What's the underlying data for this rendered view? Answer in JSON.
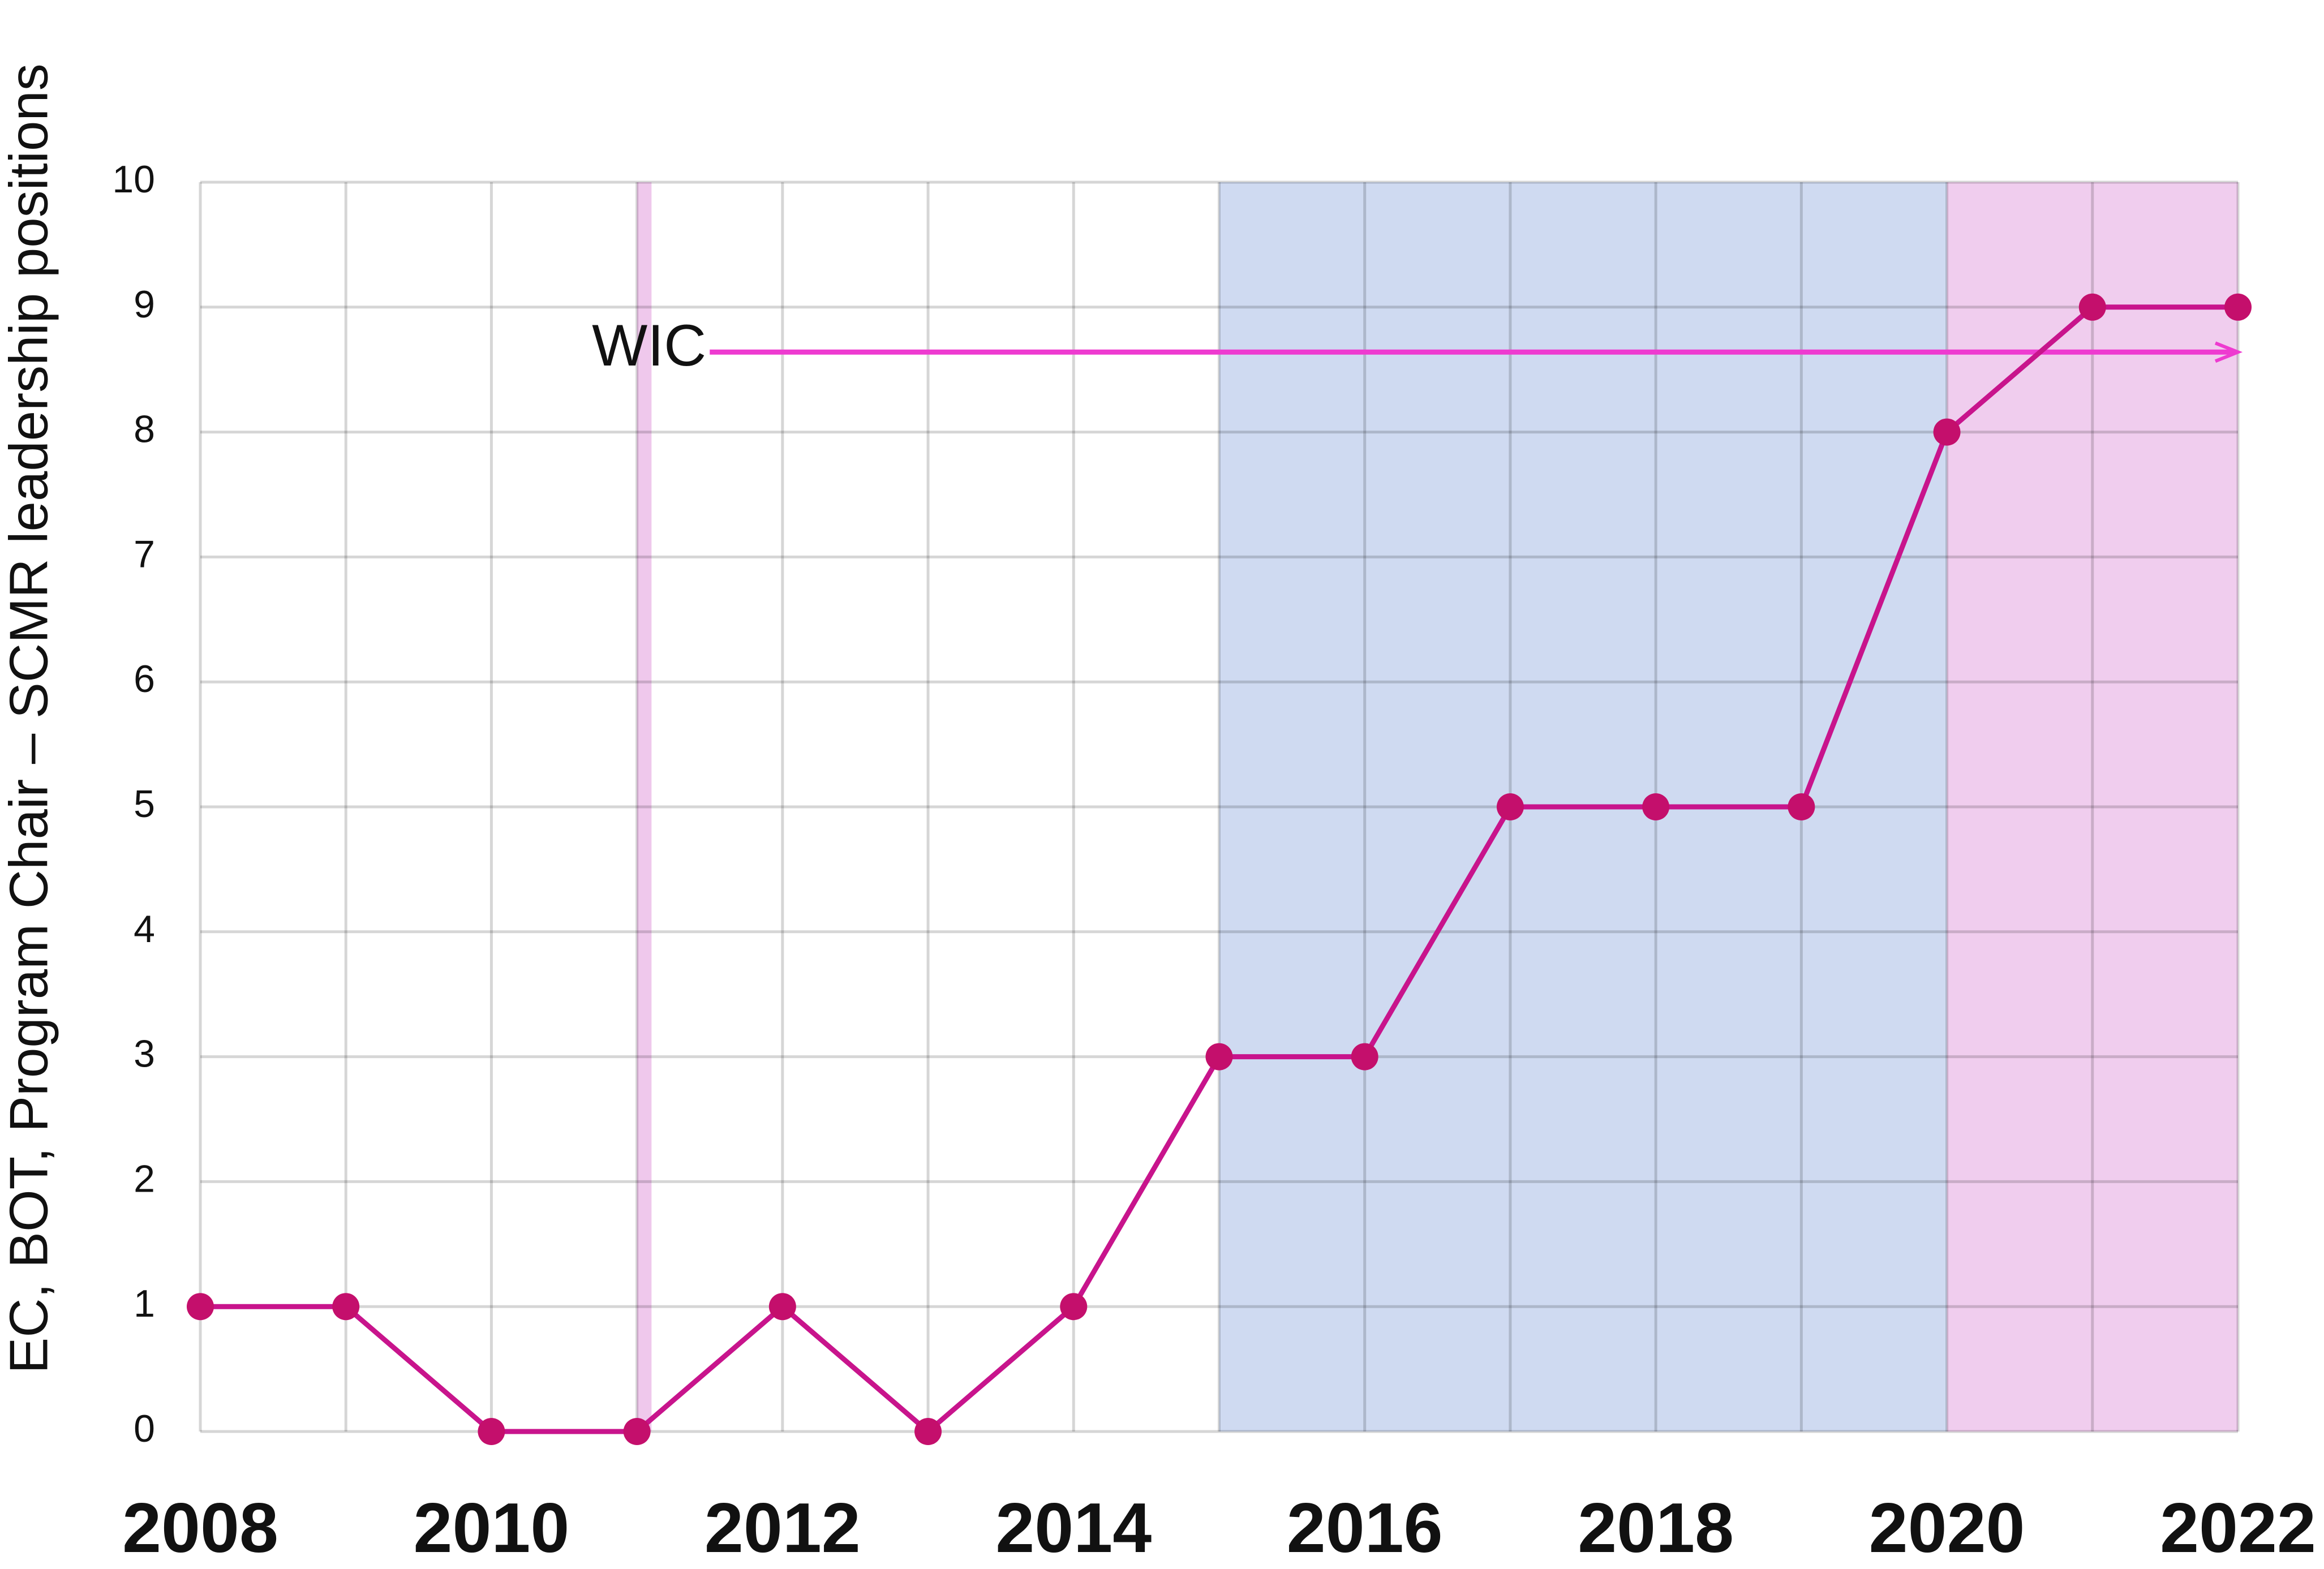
{
  "chart_data": {
    "type": "line",
    "y_label": "EC, BOT, Program Chair – SCMR leadership positions",
    "x": [
      2008,
      2009,
      2010,
      2011,
      2012,
      2013,
      2014,
      2015,
      2016,
      2017,
      2018,
      2019,
      2020,
      2021,
      2022
    ],
    "series": [
      {
        "color": "#c8148c",
        "marker_color": "#c40f6c",
        "values": [
          1,
          1,
          0,
          0,
          1,
          0,
          1,
          3,
          3,
          5,
          5,
          5,
          8,
          9,
          9
        ]
      }
    ],
    "xlim": [
      2008,
      2022
    ],
    "xticks": [
      2008,
      2010,
      2012,
      2014,
      2016,
      2018,
      2020,
      2022
    ],
    "ylim": [
      0,
      10
    ],
    "yticks": [
      0,
      1,
      2,
      3,
      4,
      5,
      6,
      7,
      8,
      9,
      10
    ],
    "grid": true,
    "bands": [
      {
        "from": 2011,
        "to": 2011.1,
        "color": "#efc8ec"
      },
      {
        "from": 2015,
        "to": 2020,
        "color": "#cfdaf1"
      },
      {
        "from": 2020,
        "to": 2022,
        "color": "#f0cdee"
      }
    ],
    "annotation": {
      "text": "WIC",
      "from": 2011.5,
      "to": 2022,
      "y": 8.64,
      "color": "#ee3bd0"
    }
  }
}
